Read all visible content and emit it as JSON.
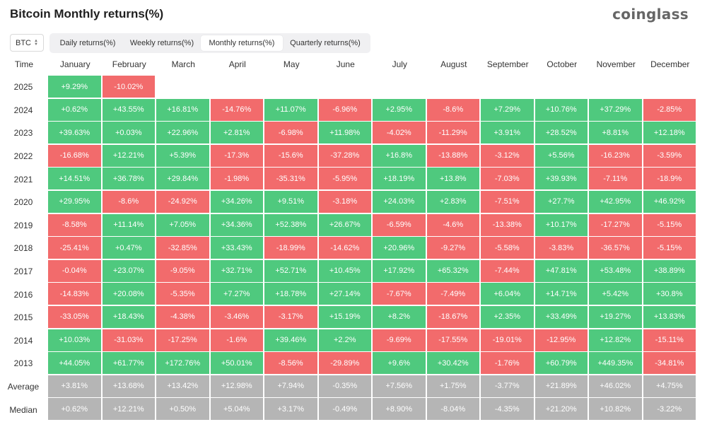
{
  "title": "Bitcoin Monthly returns(%)",
  "logo": "coinglass",
  "asset_select": {
    "value": "BTC",
    "icon": "sort-icon"
  },
  "tabs": [
    {
      "label": "Daily returns(%)",
      "active": false
    },
    {
      "label": "Weekly returns(%)",
      "active": false
    },
    {
      "label": "Monthly returns(%)",
      "active": true
    },
    {
      "label": "Quarterly returns(%)",
      "active": false
    }
  ],
  "colors": {
    "positive": "#4fc97e",
    "negative": "#f26b6c",
    "summary": "#b5b5b5"
  },
  "table": {
    "header_label": "Time",
    "months": [
      "January",
      "February",
      "March",
      "April",
      "May",
      "June",
      "July",
      "August",
      "September",
      "October",
      "November",
      "December"
    ],
    "rows": [
      {
        "label": "2025",
        "values": [
          "+9.29%",
          "-10.02%"
        ]
      },
      {
        "label": "2024",
        "values": [
          "+0.62%",
          "+43.55%",
          "+16.81%",
          "-14.76%",
          "+11.07%",
          "-6.96%",
          "+2.95%",
          "-8.6%",
          "+7.29%",
          "+10.76%",
          "+37.29%",
          "-2.85%"
        ]
      },
      {
        "label": "2023",
        "values": [
          "+39.63%",
          "+0.03%",
          "+22.96%",
          "+2.81%",
          "-6.98%",
          "+11.98%",
          "-4.02%",
          "-11.29%",
          "+3.91%",
          "+28.52%",
          "+8.81%",
          "+12.18%"
        ]
      },
      {
        "label": "2022",
        "values": [
          "-16.68%",
          "+12.21%",
          "+5.39%",
          "-17.3%",
          "-15.6%",
          "-37.28%",
          "+16.8%",
          "-13.88%",
          "-3.12%",
          "+5.56%",
          "-16.23%",
          "-3.59%"
        ]
      },
      {
        "label": "2021",
        "values": [
          "+14.51%",
          "+36.78%",
          "+29.84%",
          "-1.98%",
          "-35.31%",
          "-5.95%",
          "+18.19%",
          "+13.8%",
          "-7.03%",
          "+39.93%",
          "-7.11%",
          "-18.9%"
        ]
      },
      {
        "label": "2020",
        "values": [
          "+29.95%",
          "-8.6%",
          "-24.92%",
          "+34.26%",
          "+9.51%",
          "-3.18%",
          "+24.03%",
          "+2.83%",
          "-7.51%",
          "+27.7%",
          "+42.95%",
          "+46.92%"
        ]
      },
      {
        "label": "2019",
        "values": [
          "-8.58%",
          "+11.14%",
          "+7.05%",
          "+34.36%",
          "+52.38%",
          "+26.67%",
          "-6.59%",
          "-4.6%",
          "-13.38%",
          "+10.17%",
          "-17.27%",
          "-5.15%"
        ]
      },
      {
        "label": "2018",
        "values": [
          "-25.41%",
          "+0.47%",
          "-32.85%",
          "+33.43%",
          "-18.99%",
          "-14.62%",
          "+20.96%",
          "-9.27%",
          "-5.58%",
          "-3.83%",
          "-36.57%",
          "-5.15%"
        ]
      },
      {
        "label": "2017",
        "values": [
          "-0.04%",
          "+23.07%",
          "-9.05%",
          "+32.71%",
          "+52.71%",
          "+10.45%",
          "+17.92%",
          "+65.32%",
          "-7.44%",
          "+47.81%",
          "+53.48%",
          "+38.89%"
        ]
      },
      {
        "label": "2016",
        "values": [
          "-14.83%",
          "+20.08%",
          "-5.35%",
          "+7.27%",
          "+18.78%",
          "+27.14%",
          "-7.67%",
          "-7.49%",
          "+6.04%",
          "+14.71%",
          "+5.42%",
          "+30.8%"
        ]
      },
      {
        "label": "2015",
        "values": [
          "-33.05%",
          "+18.43%",
          "-4.38%",
          "-3.46%",
          "-3.17%",
          "+15.19%",
          "+8.2%",
          "-18.67%",
          "+2.35%",
          "+33.49%",
          "+19.27%",
          "+13.83%"
        ]
      },
      {
        "label": "2014",
        "values": [
          "+10.03%",
          "-31.03%",
          "-17.25%",
          "-1.6%",
          "+39.46%",
          "+2.2%",
          "-9.69%",
          "-17.55%",
          "-19.01%",
          "-12.95%",
          "+12.82%",
          "-15.11%"
        ]
      },
      {
        "label": "2013",
        "values": [
          "+44.05%",
          "+61.77%",
          "+172.76%",
          "+50.01%",
          "-8.56%",
          "-29.89%",
          "+9.6%",
          "+30.42%",
          "-1.76%",
          "+60.79%",
          "+449.35%",
          "-34.81%"
        ]
      }
    ],
    "summary_rows": [
      {
        "label": "Average",
        "values": [
          "+3.81%",
          "+13.68%",
          "+13.42%",
          "+12.98%",
          "+7.94%",
          "-0.35%",
          "+7.56%",
          "+1.75%",
          "-3.77%",
          "+21.89%",
          "+46.02%",
          "+4.75%"
        ]
      },
      {
        "label": "Median",
        "values": [
          "+0.62%",
          "+12.21%",
          "+0.50%",
          "+5.04%",
          "+3.17%",
          "-0.49%",
          "+8.90%",
          "-8.04%",
          "-4.35%",
          "+21.20%",
          "+10.82%",
          "-3.22%"
        ]
      }
    ]
  }
}
